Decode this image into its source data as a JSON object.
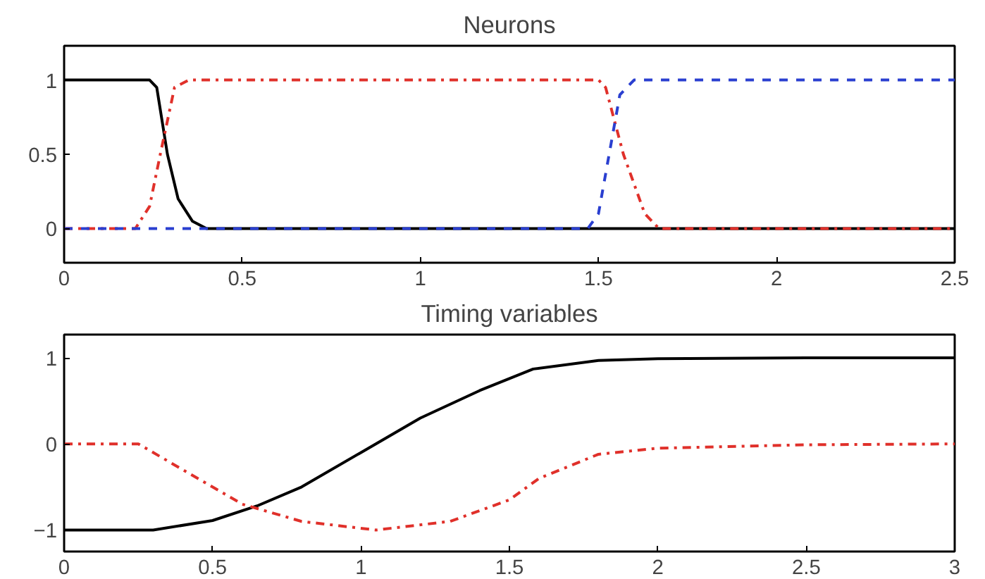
{
  "chart_data": [
    {
      "type": "line",
      "title": "Neurons",
      "xlim": [
        0,
        2.5
      ],
      "xticks": [
        0,
        0.5,
        1,
        1.5,
        2,
        2.5
      ],
      "ylim": [
        -0.23,
        1.23
      ],
      "yticks": [
        0,
        0.5,
        1
      ],
      "grid": false,
      "series": [
        {
          "color": "#000000",
          "line_style": "solid",
          "x": [
            0,
            0.24,
            0.26,
            0.29,
            0.32,
            0.36,
            0.4,
            2.5
          ],
          "values": [
            1,
            1,
            0.95,
            0.5,
            0.2,
            0.05,
            0,
            0
          ]
        },
        {
          "color": "#e0302a",
          "line_style": "dashdot",
          "x": [
            0,
            0.2,
            0.24,
            0.27,
            0.31,
            0.35,
            1.5,
            1.52,
            1.57,
            1.63,
            1.67,
            2.5
          ],
          "values": [
            0,
            0,
            0.15,
            0.5,
            0.95,
            1,
            1,
            0.95,
            0.5,
            0.1,
            0,
            0
          ]
        },
        {
          "color": "#2a3fd0",
          "line_style": "dashed",
          "x": [
            0,
            1.47,
            1.5,
            1.53,
            1.56,
            1.6,
            2.5
          ],
          "values": [
            0,
            0,
            0.1,
            0.5,
            0.9,
            1,
            1
          ]
        }
      ]
    },
    {
      "type": "line",
      "title": "Timing variables",
      "xlim": [
        0,
        3
      ],
      "xticks": [
        0,
        0.5,
        1,
        1.5,
        2,
        2.5,
        3
      ],
      "ylim": [
        -1.25,
        1.27
      ],
      "yticks": [
        {
          "value": -1,
          "label": "−1"
        },
        0,
        1
      ],
      "grid": false,
      "series": [
        {
          "color": "#000000",
          "line_style": "solid",
          "x": [
            0,
            0.3,
            0.5,
            0.65,
            0.8,
            1.0,
            1.2,
            1.4,
            1.58,
            1.8,
            2.0,
            2.5,
            3.0
          ],
          "values": [
            -1,
            -1,
            -0.89,
            -0.72,
            -0.5,
            -0.1,
            0.3,
            0.62,
            0.87,
            0.97,
            0.99,
            1,
            1
          ]
        },
        {
          "color": "#e0302a",
          "line_style": "dashdot",
          "x": [
            0,
            0.25,
            0.4,
            0.6,
            0.8,
            1.05,
            1.3,
            1.5,
            1.6,
            1.8,
            2.0,
            2.5,
            3.0
          ],
          "values": [
            0,
            0,
            -0.3,
            -0.7,
            -0.9,
            -1,
            -0.9,
            -0.65,
            -0.4,
            -0.12,
            -0.05,
            -0.01,
            0
          ]
        }
      ]
    }
  ]
}
